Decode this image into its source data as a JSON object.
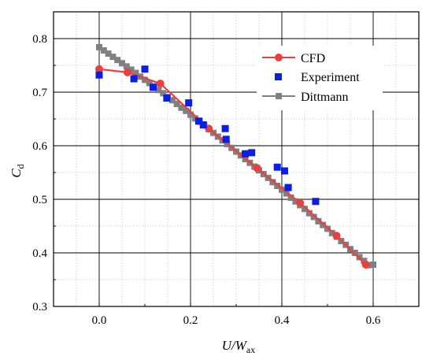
{
  "chart_data": {
    "type": "line",
    "xlabel": "U/W",
    "xlabel_sub": "ax",
    "ylabel": "C",
    "ylabel_sub": "d",
    "xlim": [
      -0.1,
      0.7
    ],
    "ylim": [
      0.3,
      0.85
    ],
    "xticks": [
      0.0,
      0.2,
      0.4,
      0.6
    ],
    "xtick_labels": [
      "0.0",
      "0.2",
      "0.4",
      "0.6"
    ],
    "yticks": [
      0.3,
      0.4,
      0.5,
      0.6,
      0.7,
      0.8
    ],
    "ytick_labels": [
      "0.3",
      "0.4",
      "0.5",
      "0.6",
      "0.7",
      "0.8"
    ],
    "grid": "major solid, minor dotted",
    "legend_position": "top-right",
    "series": [
      {
        "name": "CFD",
        "color": "#e8403f",
        "marker": "circle",
        "line": true,
        "x": [
          0.0,
          0.062,
          0.134,
          0.24,
          0.346,
          0.44,
          0.52,
          0.584
        ],
        "y": [
          0.743,
          0.737,
          0.716,
          0.632,
          0.558,
          0.493,
          0.432,
          0.378
        ]
      },
      {
        "name": "Experiment",
        "color": "#0b1fe3",
        "marker": "square",
        "line": false,
        "x": [
          0.0,
          0.076,
          0.1,
          0.118,
          0.148,
          0.196,
          0.218,
          0.228,
          0.276,
          0.278,
          0.32,
          0.334,
          0.39,
          0.406,
          0.414,
          0.474
        ],
        "y": [
          0.732,
          0.725,
          0.743,
          0.709,
          0.689,
          0.68,
          0.646,
          0.639,
          0.632,
          0.612,
          0.585,
          0.587,
          0.56,
          0.553,
          0.522,
          0.496
        ]
      },
      {
        "name": "Dittmann",
        "color": "#808080",
        "marker": "square",
        "line": true,
        "x": [
          0.0,
          0.01,
          0.02,
          0.03,
          0.04,
          0.05,
          0.06,
          0.07,
          0.08,
          0.09,
          0.1,
          0.11,
          0.12,
          0.13,
          0.14,
          0.15,
          0.16,
          0.17,
          0.18,
          0.19,
          0.2,
          0.21,
          0.22,
          0.23,
          0.24,
          0.25,
          0.26,
          0.27,
          0.28,
          0.29,
          0.3,
          0.31,
          0.32,
          0.33,
          0.34,
          0.35,
          0.36,
          0.37,
          0.38,
          0.39,
          0.4,
          0.41,
          0.42,
          0.43,
          0.44,
          0.45,
          0.46,
          0.47,
          0.48,
          0.49,
          0.5,
          0.51,
          0.52,
          0.53,
          0.54,
          0.55,
          0.56,
          0.57,
          0.58,
          0.59,
          0.6
        ],
        "y": [
          0.784,
          0.778,
          0.772,
          0.766,
          0.76,
          0.754,
          0.748,
          0.742,
          0.736,
          0.729,
          0.723,
          0.717,
          0.711,
          0.704,
          0.698,
          0.691,
          0.685,
          0.678,
          0.671,
          0.665,
          0.658,
          0.651,
          0.645,
          0.638,
          0.631,
          0.624,
          0.617,
          0.61,
          0.603,
          0.596,
          0.589,
          0.582,
          0.575,
          0.568,
          0.561,
          0.554,
          0.547,
          0.54,
          0.532,
          0.525,
          0.518,
          0.511,
          0.503,
          0.496,
          0.489,
          0.482,
          0.474,
          0.467,
          0.459,
          0.452,
          0.445,
          0.437,
          0.43,
          0.422,
          0.415,
          0.407,
          0.4,
          0.392,
          0.385,
          0.377,
          0.378
        ]
      }
    ]
  }
}
